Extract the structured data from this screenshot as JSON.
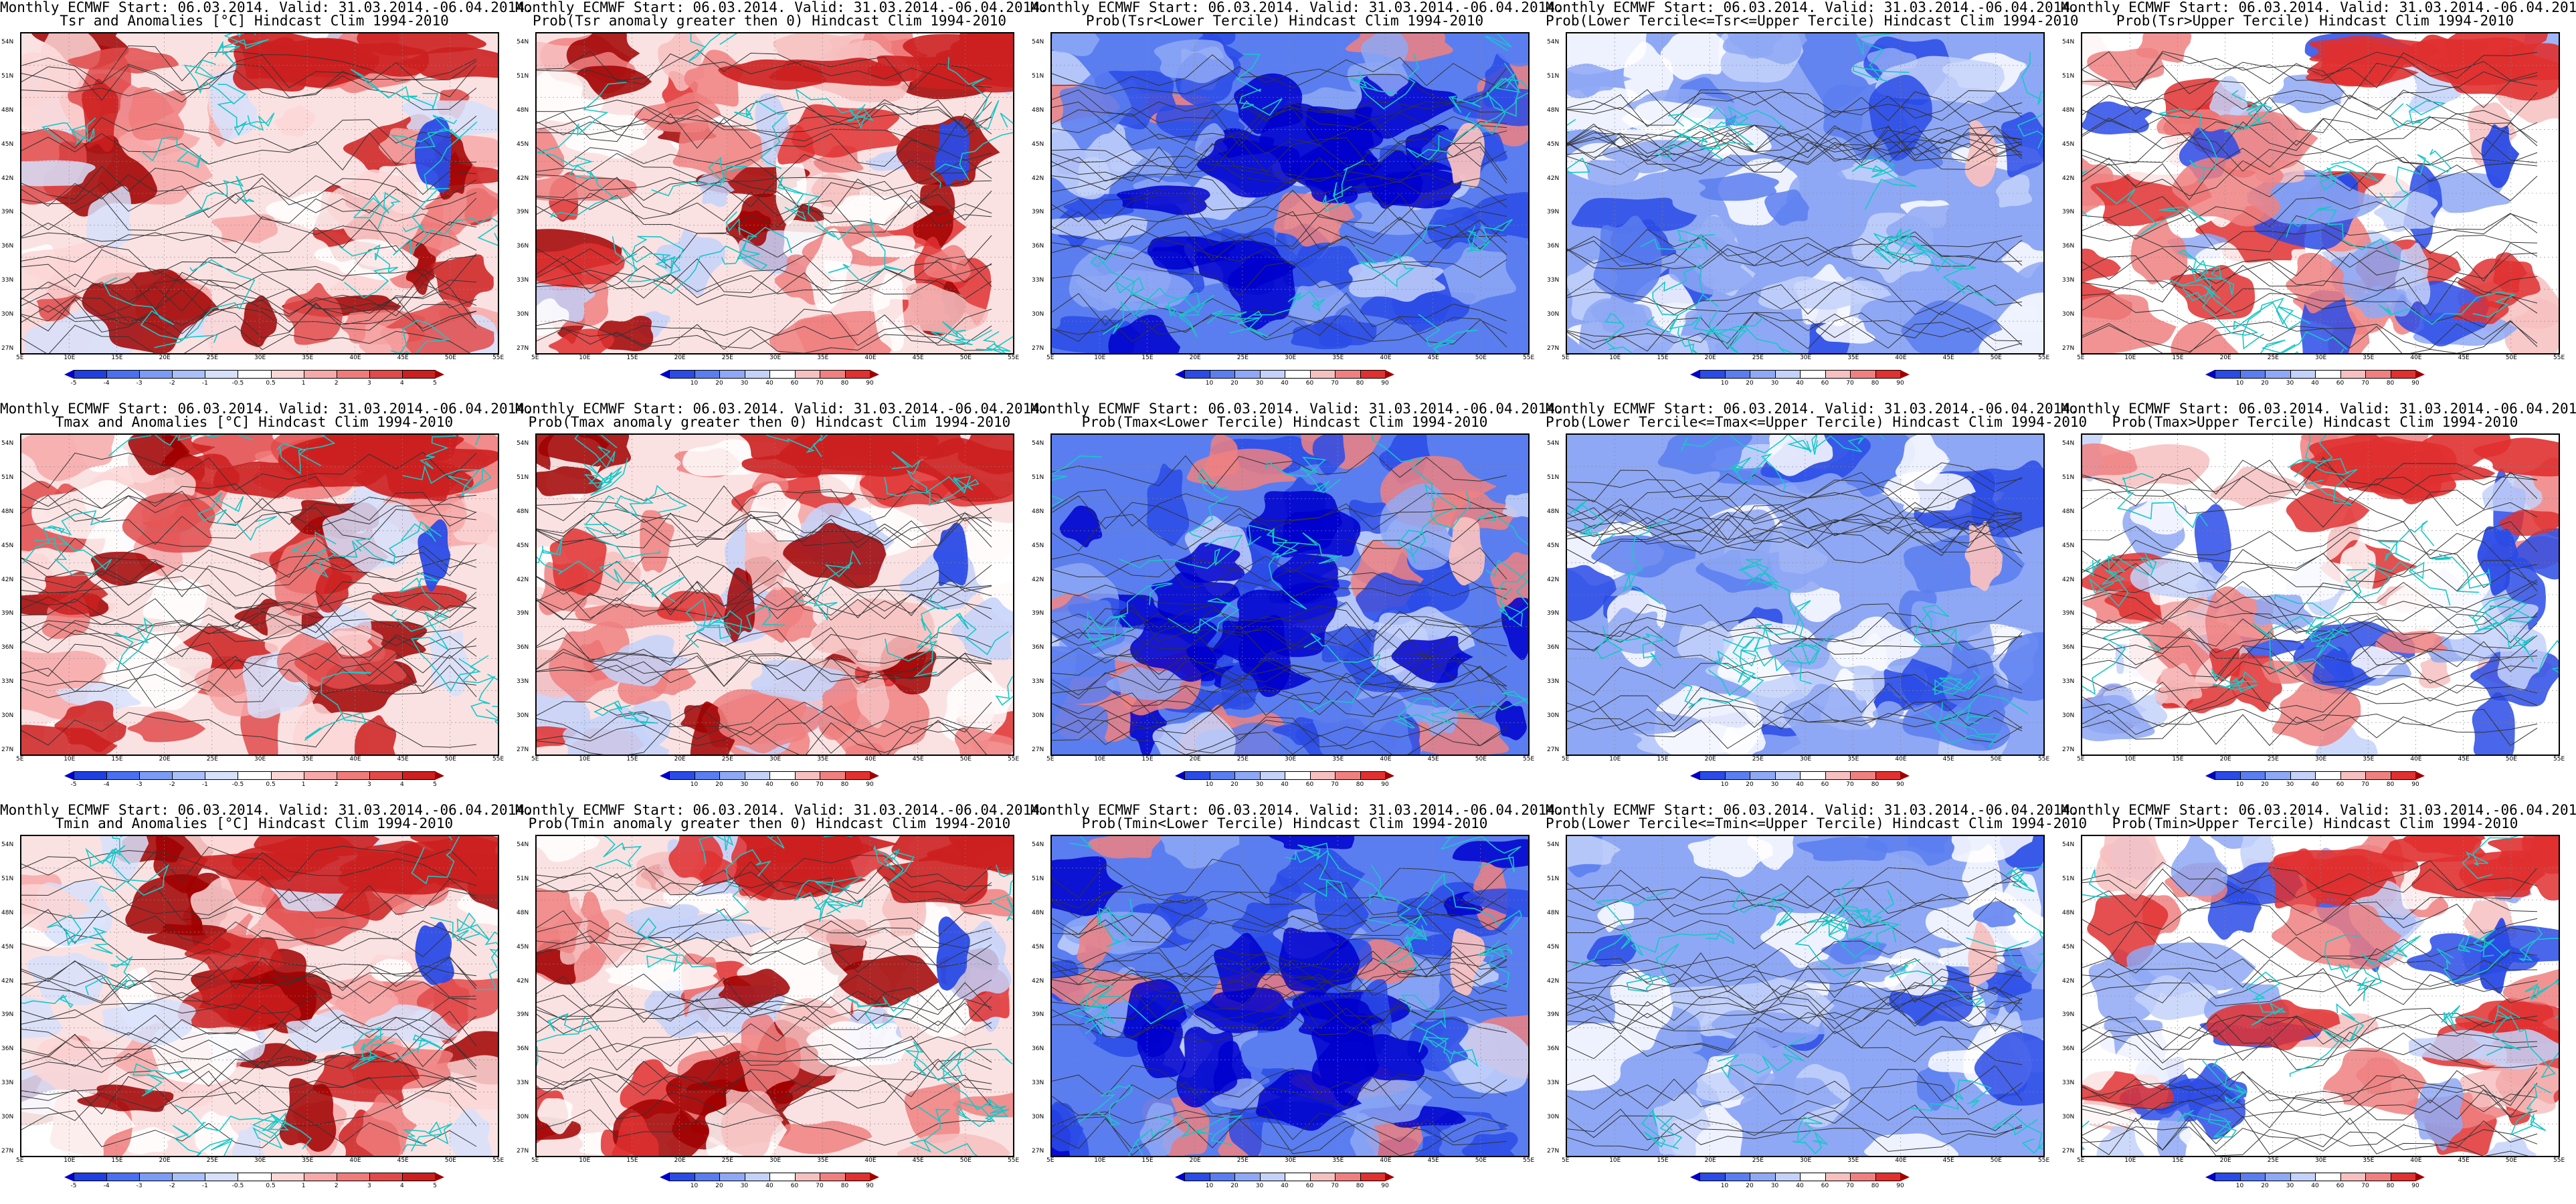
{
  "header_line": "Monthly ECMWF Start: 06.03.2014. Valid: 31.03.2014.-06.04.2014.",
  "lat_labels": [
    "54N",
    "51N",
    "48N",
    "45N",
    "42N",
    "39N",
    "36N",
    "33N",
    "30N",
    "27N"
  ],
  "lon_labels": [
    "5E",
    "10E",
    "15E",
    "20E",
    "25E",
    "30E",
    "35E",
    "40E",
    "45E",
    "50E",
    "55E"
  ],
  "anomaly_scale": {
    "ticks": [
      "-5",
      "-4",
      "-3",
      "-2",
      "-1",
      "-0.5",
      "0.5",
      "1",
      "2",
      "3",
      "4",
      "5"
    ],
    "colors": [
      "#0000cc",
      "#1f3fe0",
      "#4a6ff0",
      "#7b9bf5",
      "#a8bff8",
      "#d6e0fb",
      "#ffffff",
      "#fbd6d6",
      "#f7a8a8",
      "#f07b7b",
      "#e24a4a",
      "#cc1f1f",
      "#a00000"
    ]
  },
  "prob_scale": {
    "ticks": [
      "10",
      "20",
      "30",
      "40",
      "60",
      "70",
      "80",
      "90"
    ],
    "colors": [
      "#0000cc",
      "#2a4be6",
      "#5a7ef0",
      "#8ea8f5",
      "#c4d2fa",
      "#ffffff",
      "#f7c0c0",
      "#f08080",
      "#e03030",
      "#a00000"
    ]
  },
  "rows": [
    {
      "variable": "Tsr",
      "panels": [
        {
          "title2": "Tsr and Anomalies [°C] Hindcast Clim 1994-2010",
          "scale": "anomaly",
          "kind": "anom"
        },
        {
          "title2": "Prob(Tsr anomaly greater then 0) Hindcast Clim 1994-2010",
          "scale": "prob",
          "kind": "warm"
        },
        {
          "title2": "Prob(Tsr<Lower Tercile) Hindcast Clim 1994-2010",
          "scale": "prob",
          "kind": "cold"
        },
        {
          "title2": "Prob(Lower Tercile<=Tsr<=Upper Tercile) Hindcast Clim 1994-2010",
          "scale": "prob",
          "kind": "mid"
        },
        {
          "title2": "Prob(Tsr>Upper Tercile) Hindcast Clim 1994-2010",
          "scale": "prob",
          "kind": "upper"
        }
      ]
    },
    {
      "variable": "Tmax",
      "panels": [
        {
          "title2": "Tmax and Anomalies [°C] Hindcast Clim 1994-2010",
          "scale": "anomaly",
          "kind": "anom"
        },
        {
          "title2": "Prob(Tmax anomaly greater then 0) Hindcast Clim 1994-2010",
          "scale": "prob",
          "kind": "warm"
        },
        {
          "title2": "Prob(Tmax<Lower Tercile) Hindcast Clim 1994-2010",
          "scale": "prob",
          "kind": "cold"
        },
        {
          "title2": "Prob(Lower Tercile<=Tmax<=Upper Tercile) Hindcast Clim 1994-2010",
          "scale": "prob",
          "kind": "mid"
        },
        {
          "title2": "Prob(Tmax>Upper Tercile) Hindcast Clim 1994-2010",
          "scale": "prob",
          "kind": "upper"
        }
      ]
    },
    {
      "variable": "Tmin",
      "panels": [
        {
          "title2": "Tmin and Anomalies [°C] Hindcast Clim 1994-2010",
          "scale": "anomaly",
          "kind": "anom"
        },
        {
          "title2": "Prob(Tmin anomaly greater then 0) Hindcast Clim 1994-2010",
          "scale": "prob",
          "kind": "warm"
        },
        {
          "title2": "Prob(Tmin<Lower Tercile) Hindcast Clim 1994-2010",
          "scale": "prob",
          "kind": "cold"
        },
        {
          "title2": "Prob(Lower Tercile<=Tmin<=Upper Tercile) Hindcast Clim 1994-2010",
          "scale": "prob",
          "kind": "mid"
        },
        {
          "title2": "Prob(Tmin>Upper Tercile) Hindcast Clim 1994-2010",
          "scale": "prob",
          "kind": "upper"
        }
      ]
    }
  ]
}
